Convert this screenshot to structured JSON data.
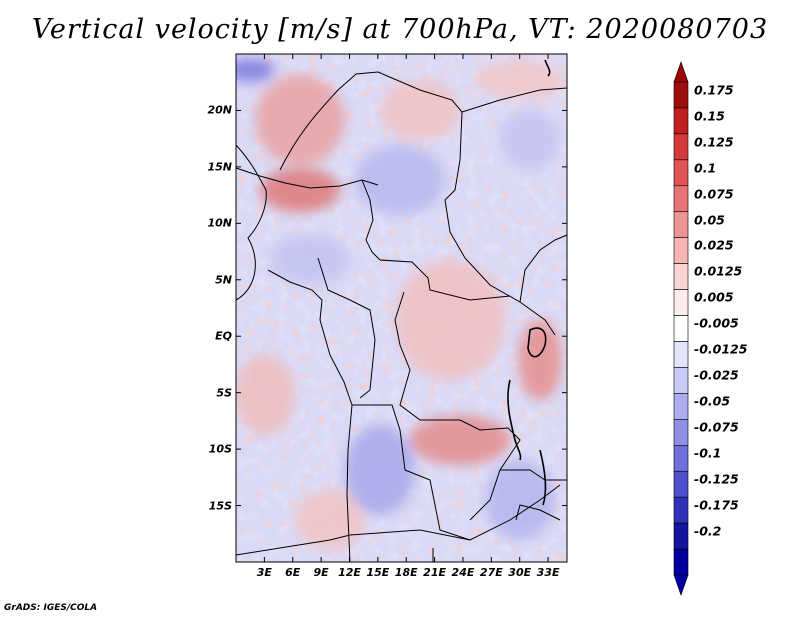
{
  "title": "Vertical velocity [m/s] at 700hPa, VT: 2020080703",
  "credit": "GrADS: IGES/COLA",
  "map": {
    "lon_range": [
      0,
      35
    ],
    "lat_range": [
      -20,
      25
    ],
    "y_ticks": [
      "20N",
      "15N",
      "10N",
      "5N",
      "EQ",
      "5S",
      "10S",
      "15S"
    ],
    "y_tick_values": [
      20,
      15,
      10,
      5,
      0,
      -5,
      -10,
      -15
    ],
    "x_ticks": [
      "3E",
      "6E",
      "9E",
      "12E",
      "15E",
      "18E",
      "21E",
      "24E",
      "27E",
      "30E",
      "33E"
    ],
    "x_tick_values": [
      3,
      6,
      9,
      12,
      15,
      18,
      21,
      24,
      27,
      30,
      33
    ]
  },
  "colorbar": {
    "labels": [
      "0.175",
      "0.15",
      "0.125",
      "0.1",
      "0.075",
      "0.05",
      "0.025",
      "0.0125",
      "0.005",
      "-0.005",
      "-0.0125",
      "-0.025",
      "-0.05",
      "-0.075",
      "-0.1",
      "-0.125",
      "-0.175",
      "-0.2"
    ],
    "colors": [
      "#a00d0d",
      "#c21f1f",
      "#d53a3a",
      "#e05656",
      "#e87575",
      "#ef9494",
      "#f5b5b5",
      "#fad4d4",
      "#fdeded",
      "#ffffff",
      "#e4e4fb",
      "#cacaf7",
      "#adadf0",
      "#8f8fe6",
      "#7070dc",
      "#5050cc",
      "#3030b8",
      "#1414a0",
      "#0000a0",
      "#a00000"
    ]
  }
}
